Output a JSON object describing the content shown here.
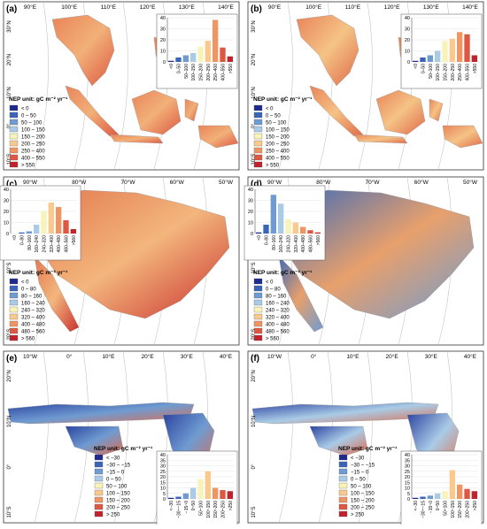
{
  "panels": [
    {
      "label": "(a)",
      "region": "asia",
      "lon_ticks": [
        "90°E",
        "100°E",
        "110°E",
        "120°E",
        "130°E",
        "140°E"
      ],
      "lat_ticks": [
        "30°N",
        "20°N",
        "10°N",
        "0°",
        "10°S"
      ],
      "legend_title": "NEP unit: gC m⁻² yr⁻¹",
      "legend": [
        "< 0",
        "0 – 50",
        "50 – 100",
        "100 – 150",
        "150 – 200",
        "200 – 250",
        "250 – 400",
        "400 – 550",
        "> 550"
      ],
      "inset": {
        "categories": [
          "<0",
          "0–50",
          "50–100",
          "100–150",
          "150–200",
          "200–250",
          "250–400",
          "400–550",
          ">550"
        ],
        "values": [
          1,
          4,
          6,
          8,
          14,
          19,
          38,
          13,
          5
        ],
        "ylim": [
          0,
          40
        ],
        "yticks": [
          0,
          10,
          20,
          30,
          40
        ]
      }
    },
    {
      "label": "(b)",
      "region": "asia",
      "lon_ticks": [
        "90°E",
        "100°E",
        "110°E",
        "120°E",
        "130°E",
        "140°E"
      ],
      "lat_ticks": [
        "30°N",
        "20°N",
        "10°N",
        "0°",
        "10°S"
      ],
      "legend_title": "NEP unit: gC m⁻² yr⁻¹",
      "legend": [
        "< 0",
        "0 – 50",
        "50 – 100",
        "100 – 150",
        "150 – 200",
        "200 – 250",
        "250 – 400",
        "400 – 550",
        "> 550"
      ],
      "inset": {
        "categories": [
          "<0",
          "0–50",
          "50–100",
          "100–150",
          "150–200",
          "200–250",
          "250–400",
          "400–550",
          ">550"
        ],
        "values": [
          1,
          4,
          6,
          10,
          19,
          21,
          27,
          25,
          6
        ],
        "ylim": [
          0,
          40
        ],
        "yticks": [
          0,
          10,
          20,
          30,
          40
        ]
      }
    },
    {
      "label": "(c)",
      "region": "amazon",
      "lon_ticks": [
        "90°W",
        "80°W",
        "70°W",
        "60°W",
        "50°W"
      ],
      "lat_ticks": [
        "0°",
        "10°S",
        "20°S"
      ],
      "legend_title": "NEP unit: gC m⁻² yr⁻¹",
      "legend": [
        "< 0",
        "0 – 80",
        "80 – 160",
        "160 – 240",
        "240 – 320",
        "320 – 400",
        "400 – 480",
        "480 – 560",
        "> 560"
      ],
      "inset": {
        "categories": [
          "<0",
          "0–80",
          "80–160",
          "160–240",
          "240–320",
          "320–400",
          "400–480",
          "480–560",
          ">560"
        ],
        "values": [
          0,
          1,
          2,
          8,
          20,
          28,
          24,
          12,
          4
        ],
        "ylim": [
          0,
          40
        ],
        "yticks": [
          0,
          10,
          20,
          30,
          40
        ]
      }
    },
    {
      "label": "(d)",
      "region": "amazon",
      "lon_ticks": [
        "90°W",
        "80°W",
        "70°W",
        "60°W",
        "50°W"
      ],
      "lat_ticks": [
        "0°",
        "10°S",
        "20°S"
      ],
      "legend_title": "NEP unit: gC m⁻² yr⁻¹",
      "legend": [
        "< 0",
        "0 – 80",
        "80 – 160",
        "160 – 240",
        "240 – 320",
        "320 – 400",
        "400 – 480",
        "480 – 560",
        "> 560"
      ],
      "inset": {
        "categories": [
          "<0",
          "0–80",
          "80–160",
          "160–240",
          "240–320",
          "320–400",
          "400–480",
          "480–560",
          ">560"
        ],
        "values": [
          1,
          8,
          35,
          27,
          13,
          10,
          6,
          3,
          1
        ],
        "ylim": [
          0,
          40
        ],
        "yticks": [
          0,
          10,
          20,
          30,
          40
        ]
      }
    },
    {
      "label": "(e)",
      "region": "africa",
      "lon_ticks": [
        "10°W",
        "0°",
        "10°E",
        "20°E",
        "30°E",
        "40°E"
      ],
      "lat_ticks": [
        "20°N",
        "10°N",
        "0°",
        "10°S"
      ],
      "legend_title": "NEP unit: gC m⁻² yr⁻¹",
      "legend": [
        "< −30",
        "−30 – −15",
        "−15 – 0",
        "0 – 50",
        "50 – 100",
        "100 – 150",
        "150 – 200",
        "200 – 250",
        "> 250"
      ],
      "inset": {
        "categories": [
          "<−30",
          "−30~−15",
          "−15~0",
          "0~50",
          "50~100",
          "100~150",
          "150~200",
          "200~250",
          ">250"
        ],
        "values": [
          1,
          2,
          5,
          10,
          18,
          25,
          10,
          8,
          7
        ],
        "ylim": [
          0,
          40
        ],
        "yticks": [
          0,
          5,
          10,
          15,
          20,
          25,
          30,
          35,
          40
        ]
      }
    },
    {
      "label": "(f)",
      "region": "africa",
      "lon_ticks": [
        "10°W",
        "0°",
        "10°E",
        "20°E",
        "30°E",
        "40°E"
      ],
      "lat_ticks": [
        "20°N",
        "10°N",
        "0°",
        "10°S"
      ],
      "legend_title": "NEP unit: gC m⁻² yr⁻¹",
      "legend": [
        "< −30",
        "−30 – −15",
        "−15 – 0",
        "0 – 50",
        "50 – 100",
        "100 – 150",
        "150 – 200",
        "200 – 250",
        "> 250"
      ],
      "inset": {
        "categories": [
          "<−30",
          "−30~−15",
          "−15~0",
          "0~50",
          "50~100",
          "100~150",
          "150~200",
          "200~250",
          ">250"
        ],
        "values": [
          1,
          2,
          3,
          5,
          7,
          26,
          13,
          9,
          7
        ],
        "ylim": [
          0,
          40
        ],
        "yticks": [
          0,
          5,
          10,
          15,
          20,
          25,
          30,
          35,
          40
        ]
      }
    }
  ],
  "colors": [
    "#1f2a8f",
    "#3b64b8",
    "#6f9bd1",
    "#a9cbe6",
    "#f8f4b9",
    "#f9c98d",
    "#ef9563",
    "#dc5842",
    "#c0232b"
  ]
}
